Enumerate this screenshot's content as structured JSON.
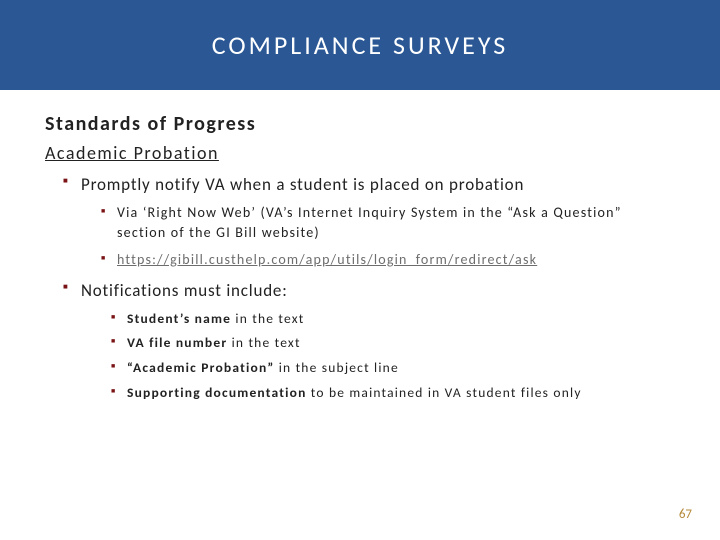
{
  "colors": {
    "banner_bg": "#2b5895",
    "banner_text": "#ffffff",
    "body_text": "#222222",
    "bullet_color": "#7a1315",
    "link_color": "#6d6d6d",
    "pagenum_color": "#b58a3a"
  },
  "banner": {
    "title": "COMPLIANCE SURVEYS"
  },
  "heading1": "Standards of Progress",
  "heading2": "Academic Probation",
  "item1": {
    "text": "Promptly notify VA when a student is placed on probation",
    "sub1_prefix": "Via ‘Right Now Web’ (VA’s Internet Inquiry System in the “Ask a Question” section of the GI Bill website)",
    "sub2_link": "https://gibill.custhelp.com/app/utils/login_form/redirect/ask"
  },
  "item2": {
    "text": "Notifications must include:",
    "subs": [
      {
        "bold": "Student’s name",
        "rest": " in the text"
      },
      {
        "bold": "VA file number",
        "rest": " in the text"
      },
      {
        "bold": "“Academic Probation”",
        "rest": " in the subject line"
      },
      {
        "bold": "Supporting documentation",
        "rest": " to be maintained in VA student files only"
      }
    ]
  },
  "page_number": "67"
}
